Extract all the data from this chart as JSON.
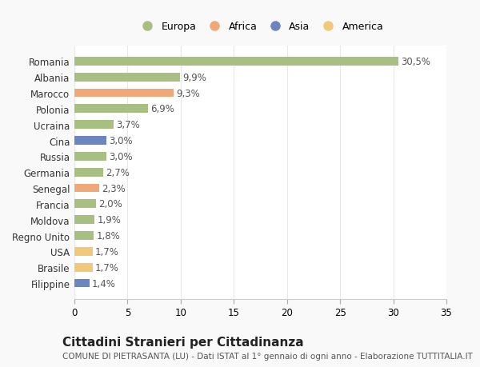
{
  "categories": [
    "Filippine",
    "Brasile",
    "USA",
    "Regno Unito",
    "Moldova",
    "Francia",
    "Senegal",
    "Germania",
    "Russia",
    "Cina",
    "Ucraina",
    "Polonia",
    "Marocco",
    "Albania",
    "Romania"
  ],
  "values": [
    1.4,
    1.7,
    1.7,
    1.8,
    1.9,
    2.0,
    2.3,
    2.7,
    3.0,
    3.0,
    3.7,
    6.9,
    9.3,
    9.9,
    30.5
  ],
  "colors": [
    "#6b85c0",
    "#f2c97a",
    "#f2c97a",
    "#a8bf82",
    "#a8bf82",
    "#a8bf82",
    "#f0a878",
    "#a8bf82",
    "#a8bf82",
    "#6b85c0",
    "#a8bf82",
    "#a8bf82",
    "#f0a878",
    "#a8bf82",
    "#a8bf82"
  ],
  "labels": [
    "1,4%",
    "1,7%",
    "1,7%",
    "1,8%",
    "1,9%",
    "2,0%",
    "2,3%",
    "2,7%",
    "3,0%",
    "3,0%",
    "3,7%",
    "6,9%",
    "9,3%",
    "9,9%",
    "30,5%"
  ],
  "legend_labels": [
    "Europa",
    "Africa",
    "Asia",
    "America"
  ],
  "legend_colors": [
    "#a8bf82",
    "#f0a878",
    "#6b85c0",
    "#f2c97a"
  ],
  "xlim": [
    0,
    35
  ],
  "xticks": [
    0,
    5,
    10,
    15,
    20,
    25,
    30,
    35
  ],
  "title": "Cittadini Stranieri per Cittadinanza",
  "subtitle": "COMUNE DI PIETRASANTA (LU) - Dati ISTAT al 1° gennaio di ogni anno - Elaborazione TUTTITALIA.IT",
  "background_color": "#f9f9f9",
  "plot_bg_color": "#ffffff",
  "bar_height": 0.55,
  "grid_color": "#e8e8e8",
  "label_fontsize": 8.5,
  "ytick_fontsize": 8.5,
  "xtick_fontsize": 8.5,
  "title_fontsize": 11,
  "subtitle_fontsize": 7.5
}
